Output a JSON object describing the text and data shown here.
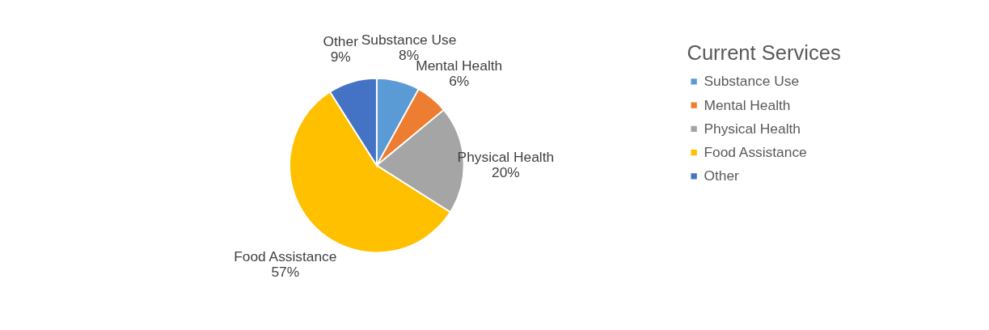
{
  "chart_data": {
    "type": "pie",
    "legend_title": "Current Services",
    "categories": [
      "Substance Use",
      "Mental Health",
      "Physical Health",
      "Food Assistance",
      "Other"
    ],
    "values": [
      8,
      6,
      20,
      57,
      9
    ],
    "colors": [
      "#5b9bd5",
      "#ed7d31",
      "#a5a5a5",
      "#ffc000",
      "#4472c4"
    ],
    "value_labels": [
      "8%",
      "6%",
      "20%",
      "57%",
      "9%"
    ],
    "legend": "right"
  }
}
